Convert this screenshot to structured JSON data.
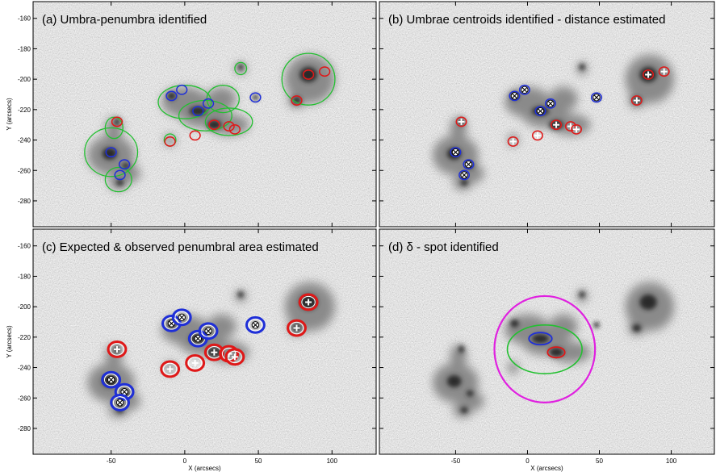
{
  "panels": [
    {
      "title": "(a) Umbra-penumbra identified"
    },
    {
      "title": "(b) Umbrae centroids identified - distance estimated"
    },
    {
      "title": "(c) Expected & observed penumbral area estimated"
    },
    {
      "title": "(d) δ - spot identified"
    }
  ],
  "axes": {
    "xlabel": "X (arcsecs)",
    "ylabel": "Y (arcsecs)",
    "xticks": [
      "-50",
      "0",
      "50",
      "100"
    ],
    "yticks": [
      "-160",
      "-180",
      "-200",
      "-220",
      "-240",
      "-260",
      "-280"
    ]
  },
  "colors": {
    "umbra_negative": "#1f2fd8",
    "umbra_positive": "#e01818",
    "penumbra": "#22c030",
    "delta_circle": "#e020e0"
  },
  "chart_data": {
    "type": "image",
    "x_range_arcsec": [
      -103,
      130
    ],
    "y_range_arcsec": [
      -297,
      -149
    ],
    "grid": false,
    "negative_umbrae_centroids": [
      {
        "x": -50,
        "y": -248
      },
      {
        "x": -9,
        "y": -211
      },
      {
        "x": 9,
        "y": -221
      },
      {
        "x": -41,
        "y": -256
      },
      {
        "x": -44,
        "y": -263
      },
      {
        "x": 16,
        "y": -216
      },
      {
        "x": -2,
        "y": -207
      },
      {
        "x": 48,
        "y": -212
      }
    ],
    "positive_umbrae_centroids": [
      {
        "x": 20,
        "y": -230
      },
      {
        "x": 84,
        "y": -197
      },
      {
        "x": 76,
        "y": -214
      },
      {
        "x": 30,
        "y": -231
      },
      {
        "x": 34,
        "y": -233
      },
      {
        "x": 7,
        "y": -237
      },
      {
        "x": -10,
        "y": -241
      },
      {
        "x": 95,
        "y": -195
      },
      {
        "x": -46,
        "y": -228
      }
    ],
    "delta_spot_circle": {
      "center_x": 12,
      "center_y": -228,
      "radius": 35
    }
  }
}
